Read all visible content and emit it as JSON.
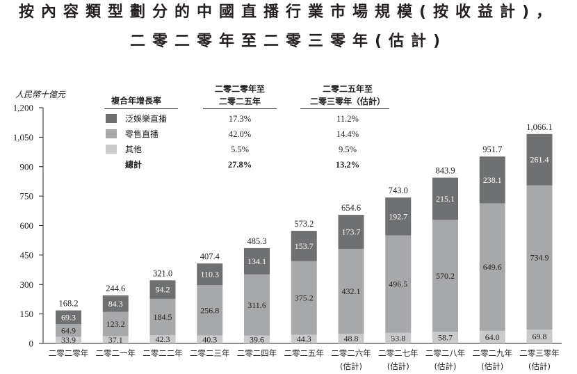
{
  "chart_data": {
    "type": "bar",
    "stacked": true,
    "title": [
      "按內容類型劃分的中國直播行業市場規模(按收益計)，",
      "二零二零年至二零三零年(估計)"
    ],
    "ylabel": "人民幣十億元",
    "xlabel": "",
    "ylim": [
      0,
      1200
    ],
    "y_ticks": [
      0,
      150,
      300,
      450,
      600,
      750,
      900,
      1050,
      1200
    ],
    "grid": false,
    "legend_placement": "top-left",
    "categories": [
      "二零二零年",
      "二零二一年",
      "二零二二年",
      "二零二三年",
      "二零二四年",
      "二零二五年",
      "二零二六年(估計)",
      "二零二七年(估計)",
      "二零二八年(估計)",
      "二零二九年(估計)",
      "二零三零年(估計)"
    ],
    "series": [
      {
        "name": "泛娛樂直播",
        "color": "#6f7072",
        "values": [
          69.3,
          84.3,
          94.2,
          110.3,
          134.1,
          153.7,
          173.7,
          192.7,
          215.1,
          238.1,
          261.4
        ]
      },
      {
        "name": "零售直播",
        "color": "#a7a8aa",
        "values": [
          64.9,
          123.2,
          184.5,
          256.8,
          311.6,
          375.2,
          432.1,
          496.5,
          570.2,
          649.6,
          734.9
        ]
      },
      {
        "name": "其他",
        "color": "#c9cacc",
        "values": [
          33.9,
          37.1,
          42.3,
          40.3,
          39.6,
          44.3,
          48.8,
          53.8,
          58.7,
          64.0,
          69.8
        ]
      }
    ],
    "totals": [
      168.2,
      244.6,
      321.0,
      407.4,
      485.3,
      573.2,
      654.6,
      743.0,
      843.9,
      951.7,
      1066.1
    ]
  },
  "cagr_table": {
    "header": "複合年增長率",
    "col1_header": [
      "二零二零年至",
      "二零二五年"
    ],
    "col2_header": [
      "二零二五年至",
      "二零三零年（估計）"
    ],
    "rows": [
      {
        "label": "泛娛樂直播",
        "c1": "17.3%",
        "c2": "11.2%"
      },
      {
        "label": "零售直播",
        "c1": "42.0%",
        "c2": "14.4%"
      },
      {
        "label": "其他",
        "c1": "5.5%",
        "c2": "9.5%"
      },
      {
        "label": "總計",
        "c1": "27.8%",
        "c2": "13.2%"
      }
    ]
  }
}
